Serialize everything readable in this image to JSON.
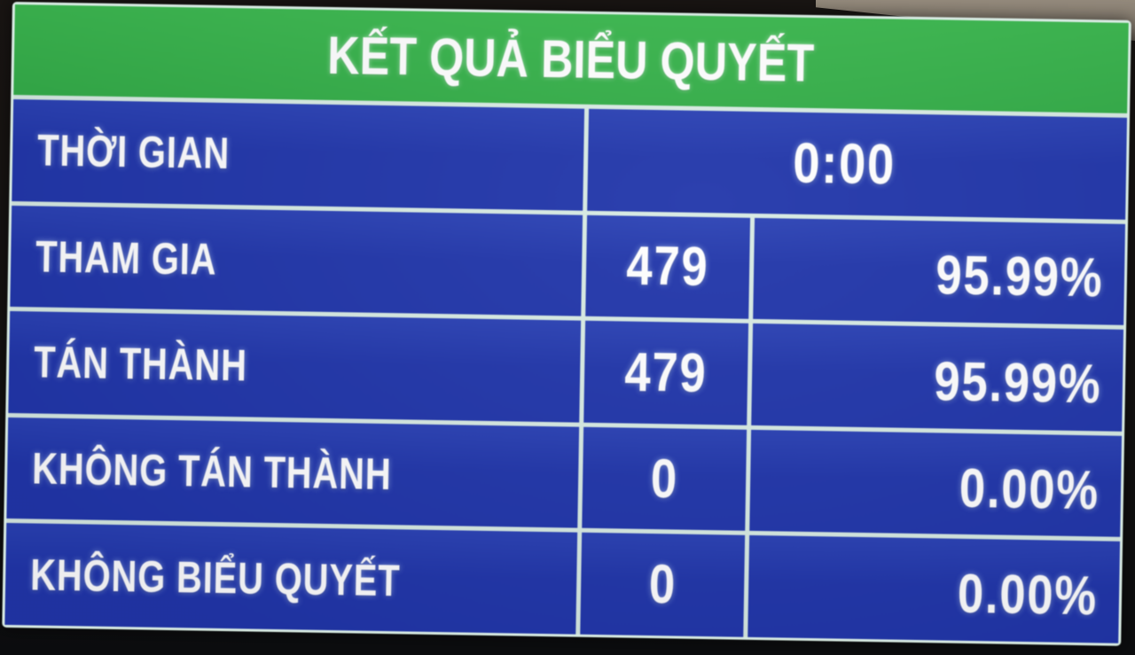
{
  "board": {
    "title": "KẾT QUẢ BIỂU QUYẾT",
    "rows": [
      {
        "label": "THỜI GIAN",
        "value": "0:00"
      },
      {
        "label": "THAM GIA",
        "count": "479",
        "percent": "95.99%"
      },
      {
        "label": "TÁN THÀNH",
        "count": "479",
        "percent": "95.99%"
      },
      {
        "label": "KHÔNG TÁN THÀNH",
        "count": "0",
        "percent": "0.00%"
      },
      {
        "label": "KHÔNG BIỂU QUYẾT",
        "count": "0",
        "percent": "0.00%"
      }
    ],
    "colors": {
      "green": "#3bb84e",
      "green2": "#33ad47",
      "blue": "#2136aa",
      "blue2": "#2a41b4",
      "line": "#d8ebe3",
      "text": "#ffffff"
    }
  }
}
